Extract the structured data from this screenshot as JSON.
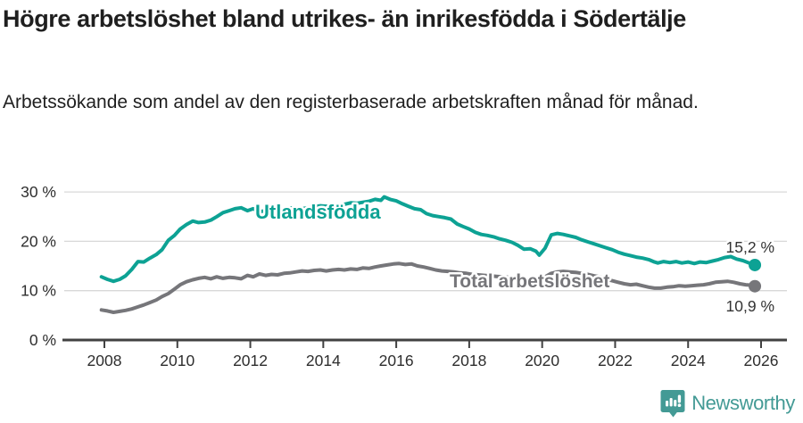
{
  "header": {
    "title": "Högre arbetslöshet bland utrikes- än inrikesfödda i Södertälje",
    "subtitle": "Arbetssökande som andel av den registerbaserade arbetskraften månad för månad."
  },
  "chart_data": {
    "type": "line",
    "title": "Högre arbetslöshet bland utrikes- än inrikesfödda i Södertälje",
    "subtitle": "Arbetssökande som andel av den registerbaserade arbetskraften månad för månad.",
    "grid": "horizontal-only",
    "legend_position": "inline-on-lines",
    "x_axis": {
      "ticks": [
        2008,
        2010,
        2012,
        2014,
        2016,
        2018,
        2020,
        2022,
        2024,
        2026
      ],
      "tick_labels": [
        "2008",
        "2010",
        "2012",
        "2014",
        "2016",
        "2018",
        "2020",
        "2022",
        "2024",
        "2026"
      ],
      "range": [
        2007.8,
        2026.7
      ]
    },
    "y_axis": {
      "ticks": [
        0,
        10,
        20,
        30
      ],
      "tick_labels": [
        "0 %",
        "10 %",
        "20 %",
        "30 %"
      ],
      "range": [
        0,
        31
      ],
      "unit": "%"
    },
    "series": [
      {
        "name": "Utlandsfödda",
        "color": "#0da294",
        "end_annotation": "15,2 %",
        "end_value": 15.2,
        "points": [
          [
            2007.92,
            12.8
          ],
          [
            2008.08,
            12.3
          ],
          [
            2008.25,
            11.9
          ],
          [
            2008.42,
            12.3
          ],
          [
            2008.58,
            13.0
          ],
          [
            2008.75,
            14.3
          ],
          [
            2008.92,
            15.9
          ],
          [
            2009.08,
            15.8
          ],
          [
            2009.25,
            16.6
          ],
          [
            2009.42,
            17.3
          ],
          [
            2009.58,
            18.3
          ],
          [
            2009.75,
            20.2
          ],
          [
            2009.92,
            21.2
          ],
          [
            2010.08,
            22.5
          ],
          [
            2010.25,
            23.4
          ],
          [
            2010.42,
            24.1
          ],
          [
            2010.58,
            23.8
          ],
          [
            2010.75,
            23.9
          ],
          [
            2010.92,
            24.3
          ],
          [
            2011.08,
            25.0
          ],
          [
            2011.25,
            25.8
          ],
          [
            2011.42,
            26.2
          ],
          [
            2011.58,
            26.6
          ],
          [
            2011.75,
            26.8
          ],
          [
            2011.92,
            26.2
          ],
          [
            2012.08,
            26.6
          ],
          [
            2012.25,
            26.0
          ],
          [
            2012.42,
            26.2
          ],
          [
            2012.58,
            26.1
          ],
          [
            2012.75,
            26.4
          ],
          [
            2012.92,
            26.5
          ],
          [
            2013.08,
            26.7
          ],
          [
            2013.25,
            26.8
          ],
          [
            2013.42,
            26.6
          ],
          [
            2013.58,
            26.8
          ],
          [
            2013.75,
            27.0
          ],
          [
            2013.92,
            27.2
          ],
          [
            2014.08,
            27.1
          ],
          [
            2014.25,
            27.2
          ],
          [
            2014.42,
            27.3
          ],
          [
            2014.58,
            27.5
          ],
          [
            2014.75,
            27.8
          ],
          [
            2014.92,
            27.7
          ],
          [
            2015.08,
            27.9
          ],
          [
            2015.25,
            28.1
          ],
          [
            2015.42,
            28.5
          ],
          [
            2015.58,
            28.3
          ],
          [
            2015.67,
            29.0
          ],
          [
            2015.83,
            28.5
          ],
          [
            2016.0,
            28.2
          ],
          [
            2016.17,
            27.6
          ],
          [
            2016.33,
            27.1
          ],
          [
            2016.5,
            26.6
          ],
          [
            2016.67,
            26.4
          ],
          [
            2016.83,
            25.6
          ],
          [
            2017.0,
            25.2
          ],
          [
            2017.17,
            25.0
          ],
          [
            2017.33,
            24.8
          ],
          [
            2017.5,
            24.5
          ],
          [
            2017.67,
            23.5
          ],
          [
            2017.83,
            23.0
          ],
          [
            2018.0,
            22.5
          ],
          [
            2018.17,
            21.8
          ],
          [
            2018.33,
            21.4
          ],
          [
            2018.5,
            21.2
          ],
          [
            2018.67,
            20.9
          ],
          [
            2018.83,
            20.5
          ],
          [
            2019.0,
            20.2
          ],
          [
            2019.17,
            19.8
          ],
          [
            2019.33,
            19.2
          ],
          [
            2019.5,
            18.4
          ],
          [
            2019.67,
            18.5
          ],
          [
            2019.83,
            18.0
          ],
          [
            2019.92,
            17.2
          ],
          [
            2020.08,
            18.6
          ],
          [
            2020.25,
            21.3
          ],
          [
            2020.42,
            21.6
          ],
          [
            2020.58,
            21.4
          ],
          [
            2020.75,
            21.1
          ],
          [
            2020.92,
            20.8
          ],
          [
            2021.08,
            20.3
          ],
          [
            2021.25,
            19.9
          ],
          [
            2021.42,
            19.5
          ],
          [
            2021.58,
            19.1
          ],
          [
            2021.75,
            18.7
          ],
          [
            2021.92,
            18.3
          ],
          [
            2022.08,
            17.8
          ],
          [
            2022.25,
            17.4
          ],
          [
            2022.42,
            17.1
          ],
          [
            2022.58,
            16.8
          ],
          [
            2022.75,
            16.6
          ],
          [
            2022.92,
            16.3
          ],
          [
            2023.08,
            15.8
          ],
          [
            2023.17,
            15.6
          ],
          [
            2023.33,
            15.9
          ],
          [
            2023.5,
            15.7
          ],
          [
            2023.67,
            15.9
          ],
          [
            2023.83,
            15.6
          ],
          [
            2024.0,
            15.8
          ],
          [
            2024.17,
            15.5
          ],
          [
            2024.33,
            15.8
          ],
          [
            2024.5,
            15.7
          ],
          [
            2024.67,
            16.0
          ],
          [
            2024.83,
            16.3
          ],
          [
            2025.0,
            16.7
          ],
          [
            2025.17,
            16.9
          ],
          [
            2025.33,
            16.4
          ],
          [
            2025.5,
            16.1
          ],
          [
            2025.67,
            15.6
          ],
          [
            2025.83,
            15.2
          ]
        ]
      },
      {
        "name": "Total arbetslöshet",
        "color": "#76767a",
        "end_annotation": "10,9 %",
        "end_value": 10.9,
        "points": [
          [
            2007.92,
            6.1
          ],
          [
            2008.08,
            5.9
          ],
          [
            2008.25,
            5.6
          ],
          [
            2008.42,
            5.8
          ],
          [
            2008.58,
            6.0
          ],
          [
            2008.75,
            6.3
          ],
          [
            2008.92,
            6.7
          ],
          [
            2009.08,
            7.1
          ],
          [
            2009.25,
            7.6
          ],
          [
            2009.42,
            8.1
          ],
          [
            2009.58,
            8.8
          ],
          [
            2009.75,
            9.4
          ],
          [
            2009.92,
            10.3
          ],
          [
            2010.08,
            11.2
          ],
          [
            2010.25,
            11.8
          ],
          [
            2010.42,
            12.2
          ],
          [
            2010.58,
            12.5
          ],
          [
            2010.75,
            12.7
          ],
          [
            2010.92,
            12.4
          ],
          [
            2011.08,
            12.8
          ],
          [
            2011.25,
            12.5
          ],
          [
            2011.42,
            12.7
          ],
          [
            2011.58,
            12.6
          ],
          [
            2011.75,
            12.4
          ],
          [
            2011.92,
            13.1
          ],
          [
            2012.08,
            12.8
          ],
          [
            2012.25,
            13.4
          ],
          [
            2012.42,
            13.1
          ],
          [
            2012.58,
            13.3
          ],
          [
            2012.75,
            13.2
          ],
          [
            2012.92,
            13.5
          ],
          [
            2013.08,
            13.6
          ],
          [
            2013.25,
            13.8
          ],
          [
            2013.42,
            14.0
          ],
          [
            2013.58,
            13.9
          ],
          [
            2013.75,
            14.1
          ],
          [
            2013.92,
            14.2
          ],
          [
            2014.08,
            14.0
          ],
          [
            2014.25,
            14.2
          ],
          [
            2014.42,
            14.3
          ],
          [
            2014.58,
            14.2
          ],
          [
            2014.75,
            14.4
          ],
          [
            2014.92,
            14.3
          ],
          [
            2015.08,
            14.6
          ],
          [
            2015.25,
            14.5
          ],
          [
            2015.42,
            14.8
          ],
          [
            2015.58,
            15.0
          ],
          [
            2015.75,
            15.2
          ],
          [
            2015.92,
            15.4
          ],
          [
            2016.08,
            15.5
          ],
          [
            2016.25,
            15.3
          ],
          [
            2016.42,
            15.4
          ],
          [
            2016.58,
            15.0
          ],
          [
            2016.75,
            14.8
          ],
          [
            2016.92,
            14.5
          ],
          [
            2017.08,
            14.2
          ],
          [
            2017.25,
            14.0
          ],
          [
            2017.42,
            13.9
          ],
          [
            2017.58,
            13.8
          ],
          [
            2017.75,
            13.6
          ],
          [
            2017.92,
            13.5
          ],
          [
            2018.08,
            13.3
          ],
          [
            2018.25,
            13.2
          ],
          [
            2018.42,
            13.1
          ],
          [
            2018.58,
            13.0
          ],
          [
            2018.75,
            12.9
          ],
          [
            2018.92,
            12.8
          ],
          [
            2019.08,
            12.7
          ],
          [
            2019.25,
            12.6
          ],
          [
            2019.42,
            12.5
          ],
          [
            2019.58,
            12.3
          ],
          [
            2019.75,
            12.2
          ],
          [
            2019.92,
            12.3
          ],
          [
            2020.08,
            12.8
          ],
          [
            2020.25,
            13.5
          ],
          [
            2020.42,
            13.8
          ],
          [
            2020.58,
            13.9
          ],
          [
            2020.75,
            13.8
          ],
          [
            2020.92,
            13.7
          ],
          [
            2021.08,
            13.5
          ],
          [
            2021.25,
            13.3
          ],
          [
            2021.42,
            13.0
          ],
          [
            2021.58,
            12.8
          ],
          [
            2021.75,
            12.3
          ],
          [
            2021.92,
            12.0
          ],
          [
            2022.08,
            11.7
          ],
          [
            2022.25,
            11.4
          ],
          [
            2022.42,
            11.2
          ],
          [
            2022.58,
            11.3
          ],
          [
            2022.75,
            11.0
          ],
          [
            2022.92,
            10.7
          ],
          [
            2023.08,
            10.5
          ],
          [
            2023.25,
            10.5
          ],
          [
            2023.42,
            10.7
          ],
          [
            2023.58,
            10.8
          ],
          [
            2023.75,
            11.0
          ],
          [
            2023.92,
            10.9
          ],
          [
            2024.08,
            11.0
          ],
          [
            2024.25,
            11.1
          ],
          [
            2024.42,
            11.2
          ],
          [
            2024.58,
            11.4
          ],
          [
            2024.75,
            11.7
          ],
          [
            2024.92,
            11.8
          ],
          [
            2025.08,
            11.9
          ],
          [
            2025.25,
            11.7
          ],
          [
            2025.42,
            11.4
          ],
          [
            2025.58,
            11.2
          ],
          [
            2025.75,
            11.1
          ],
          [
            2025.83,
            10.9
          ]
        ]
      }
    ],
    "series_labels": {
      "utlandsfodda": "Utlandsfödda",
      "total": "Total arbetslöshet"
    },
    "annotations": {
      "teal_end": "15,2 %",
      "gray_end": "10,9 %"
    }
  },
  "colors": {
    "teal_line": "#0da294",
    "gray_line": "#76767a",
    "gridline": "#d8d8d8",
    "axis": "#414141",
    "tick_text": "#2e2e2e",
    "annotation_text": "#333333",
    "brand_teal": "#439a95"
  },
  "footer": {
    "brand": "Newsworthy",
    "logo_icon": "bar-chart-speech-bubble-icon"
  }
}
